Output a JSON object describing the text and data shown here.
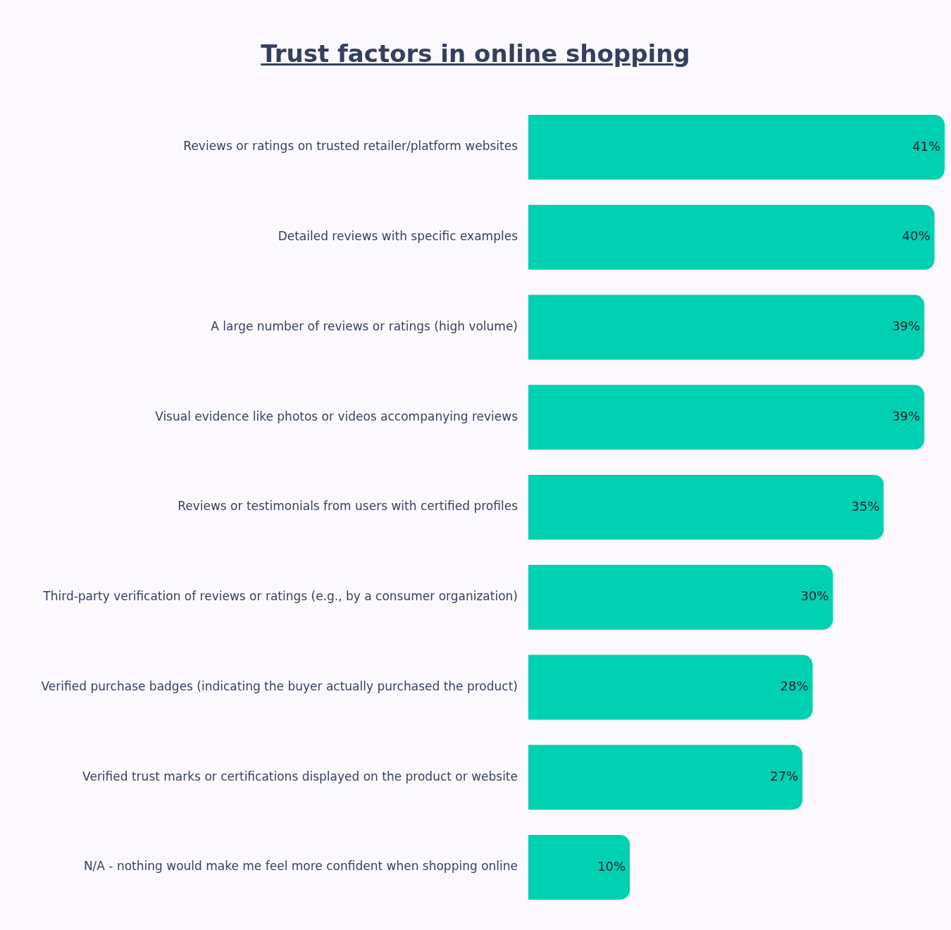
{
  "chart_data": {
    "type": "bar",
    "orientation": "horizontal",
    "title": "Trust factors in online shopping",
    "categories": [
      "Reviews or ratings on trusted retailer/platform websites",
      "Detailed reviews with specific examples",
      "A large number of reviews or ratings (high volume)",
      "Visual evidence like photos or videos accompanying reviews",
      "Reviews or testimonials from users with certified profiles",
      "Third-party verification of reviews or ratings (e.g., by a consumer organization)",
      "Verified purchase badges (indicating the buyer actually purchased the product)",
      "Verified trust marks or certifications displayed on the product or website",
      "N/A - nothing would make me feel more confident when shopping online"
    ],
    "values": [
      41,
      40,
      39,
      39,
      35,
      30,
      28,
      27,
      10
    ],
    "value_labels": [
      "41%",
      "40%",
      "39%",
      "39%",
      "35%",
      "30%",
      "28%",
      "27%",
      "10%"
    ],
    "color": "#00d1b2",
    "xlim": [
      0,
      41
    ],
    "grid": false,
    "legend": false,
    "tick_labels": "y"
  }
}
